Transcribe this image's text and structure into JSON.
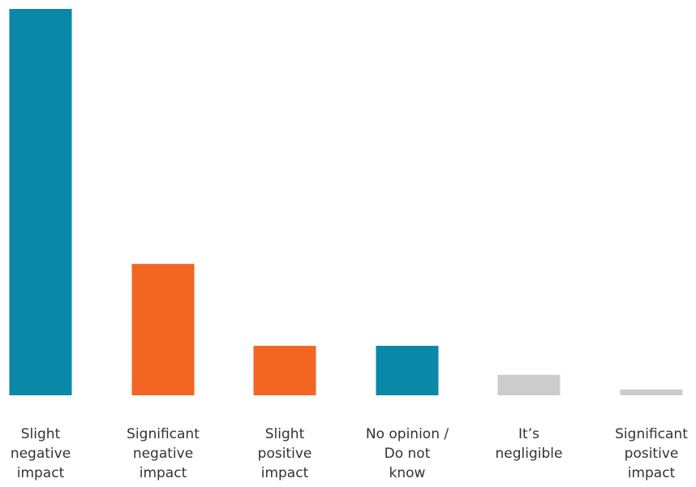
{
  "chart_data": {
    "type": "bar",
    "title": "",
    "xlabel": "",
    "ylabel": "",
    "categories": [
      "Slight negative impact",
      "Significant negative impact",
      "Slight positive impact",
      "No opinion / Do not know",
      "It’s negligible",
      "Significant positive impact"
    ],
    "category_label_lines": [
      [
        "Slight",
        "negative",
        "impact"
      ],
      [
        "Significant",
        "negative",
        "impact"
      ],
      [
        "Slight",
        "positive",
        "impact"
      ],
      [
        "No opinion /",
        "Do not",
        "know"
      ],
      [
        "It’s",
        "negligible"
      ],
      [
        "Significant",
        "positive",
        "impact"
      ]
    ],
    "values": [
      100,
      34,
      12.8,
      12.8,
      5.3,
      1.5
    ],
    "colors": [
      "#0a88a7",
      "#f26522",
      "#f26522",
      "#0a88a7",
      "#cccccc",
      "#cccccc"
    ],
    "ylim": [
      0,
      100
    ],
    "grid": false,
    "legend": "none"
  }
}
